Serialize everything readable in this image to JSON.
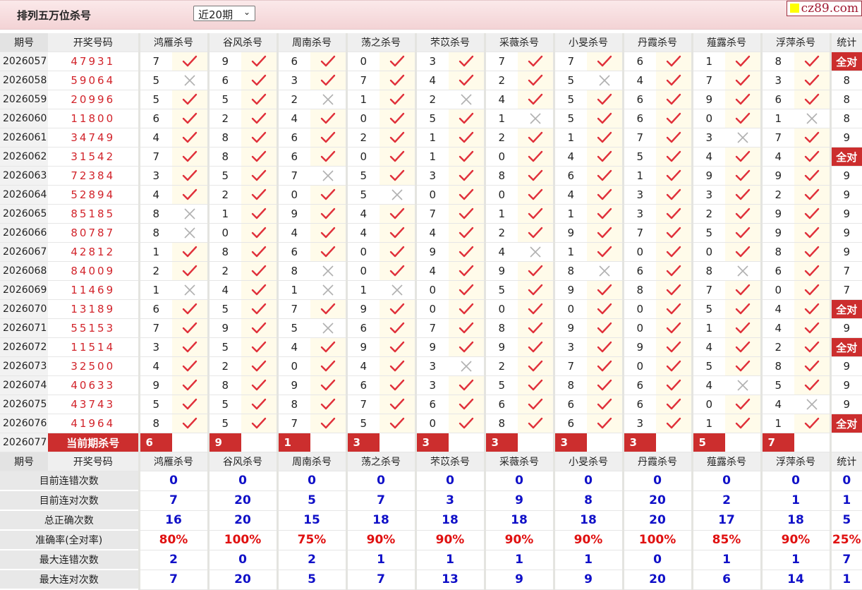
{
  "header": {
    "title": "排列五万位杀号",
    "period_select": "近20期",
    "brand": "cz89.com"
  },
  "columns": {
    "period": "期号",
    "draw": "开奖号码",
    "stat": "统计",
    "experts": [
      "鸿雁杀号",
      "谷风杀号",
      "周南杀号",
      "荡之杀号",
      "芣苡杀号",
      "采薇杀号",
      "小旻杀号",
      "丹霞杀号",
      "薤露杀号",
      "浮萍杀号"
    ]
  },
  "rows": [
    {
      "period": "2026057",
      "draw": "47931",
      "kills": [
        7,
        9,
        6,
        0,
        3,
        7,
        7,
        6,
        1,
        8
      ],
      "ok": [
        1,
        1,
        1,
        1,
        1,
        1,
        1,
        1,
        1,
        1
      ],
      "stat": "全对"
    },
    {
      "period": "2026058",
      "draw": "59064",
      "kills": [
        5,
        6,
        3,
        7,
        4,
        2,
        5,
        4,
        7,
        3
      ],
      "ok": [
        0,
        1,
        1,
        1,
        1,
        1,
        0,
        1,
        1,
        1
      ],
      "stat": "8"
    },
    {
      "period": "2026059",
      "draw": "20996",
      "kills": [
        5,
        5,
        2,
        1,
        2,
        4,
        5,
        6,
        9,
        6
      ],
      "ok": [
        1,
        1,
        0,
        1,
        0,
        1,
        1,
        1,
        1,
        1
      ],
      "stat": "8"
    },
    {
      "period": "2026060",
      "draw": "11800",
      "kills": [
        6,
        2,
        4,
        0,
        5,
        1,
        5,
        6,
        0,
        1
      ],
      "ok": [
        1,
        1,
        1,
        1,
        1,
        0,
        1,
        1,
        1,
        0
      ],
      "stat": "8"
    },
    {
      "period": "2026061",
      "draw": "34749",
      "kills": [
        4,
        8,
        6,
        2,
        1,
        2,
        1,
        7,
        3,
        7
      ],
      "ok": [
        1,
        1,
        1,
        1,
        1,
        1,
        1,
        1,
        0,
        1
      ],
      "stat": "9"
    },
    {
      "period": "2026062",
      "draw": "31542",
      "kills": [
        7,
        8,
        6,
        0,
        1,
        0,
        4,
        5,
        4,
        4
      ],
      "ok": [
        1,
        1,
        1,
        1,
        1,
        1,
        1,
        1,
        1,
        1
      ],
      "stat": "全对"
    },
    {
      "period": "2026063",
      "draw": "72384",
      "kills": [
        3,
        5,
        7,
        5,
        3,
        8,
        6,
        1,
        9,
        9
      ],
      "ok": [
        1,
        1,
        0,
        1,
        1,
        1,
        1,
        1,
        1,
        1
      ],
      "stat": "9"
    },
    {
      "period": "2026064",
      "draw": "52894",
      "kills": [
        4,
        2,
        0,
        5,
        0,
        0,
        4,
        3,
        3,
        2
      ],
      "ok": [
        1,
        1,
        1,
        0,
        1,
        1,
        1,
        1,
        1,
        1
      ],
      "stat": "9"
    },
    {
      "period": "2026065",
      "draw": "85185",
      "kills": [
        8,
        1,
        9,
        4,
        7,
        1,
        1,
        3,
        2,
        9
      ],
      "ok": [
        0,
        1,
        1,
        1,
        1,
        1,
        1,
        1,
        1,
        1
      ],
      "stat": "9"
    },
    {
      "period": "2026066",
      "draw": "80787",
      "kills": [
        8,
        0,
        4,
        4,
        4,
        2,
        9,
        7,
        5,
        9
      ],
      "ok": [
        0,
        1,
        1,
        1,
        1,
        1,
        1,
        1,
        1,
        1
      ],
      "stat": "9"
    },
    {
      "period": "2026067",
      "draw": "42812",
      "kills": [
        1,
        8,
        6,
        0,
        9,
        4,
        1,
        0,
        0,
        8
      ],
      "ok": [
        1,
        1,
        1,
        1,
        1,
        0,
        1,
        1,
        1,
        1
      ],
      "stat": "9"
    },
    {
      "period": "2026068",
      "draw": "84009",
      "kills": [
        2,
        2,
        8,
        0,
        4,
        9,
        8,
        6,
        8,
        6
      ],
      "ok": [
        1,
        1,
        0,
        1,
        1,
        1,
        0,
        1,
        0,
        1
      ],
      "stat": "7"
    },
    {
      "period": "2026069",
      "draw": "11469",
      "kills": [
        1,
        4,
        1,
        1,
        0,
        5,
        9,
        8,
        7,
        0
      ],
      "ok": [
        0,
        1,
        0,
        0,
        1,
        1,
        1,
        1,
        1,
        1
      ],
      "stat": "7"
    },
    {
      "period": "2026070",
      "draw": "13189",
      "kills": [
        6,
        5,
        7,
        9,
        0,
        0,
        0,
        0,
        5,
        4
      ],
      "ok": [
        1,
        1,
        1,
        1,
        1,
        1,
        1,
        1,
        1,
        1
      ],
      "stat": "全对"
    },
    {
      "period": "2026071",
      "draw": "55153",
      "kills": [
        7,
        9,
        5,
        6,
        7,
        8,
        9,
        0,
        1,
        4
      ],
      "ok": [
        1,
        1,
        0,
        1,
        1,
        1,
        1,
        1,
        1,
        1
      ],
      "stat": "9"
    },
    {
      "period": "2026072",
      "draw": "11514",
      "kills": [
        3,
        5,
        4,
        9,
        9,
        9,
        3,
        9,
        4,
        2
      ],
      "ok": [
        1,
        1,
        1,
        1,
        1,
        1,
        1,
        1,
        1,
        1
      ],
      "stat": "全对"
    },
    {
      "period": "2026073",
      "draw": "32500",
      "kills": [
        4,
        2,
        0,
        4,
        3,
        2,
        7,
        0,
        5,
        8
      ],
      "ok": [
        1,
        1,
        1,
        1,
        0,
        1,
        1,
        1,
        1,
        1
      ],
      "stat": "9"
    },
    {
      "period": "2026074",
      "draw": "40633",
      "kills": [
        9,
        8,
        9,
        6,
        3,
        5,
        8,
        6,
        4,
        5
      ],
      "ok": [
        1,
        1,
        1,
        1,
        1,
        1,
        1,
        1,
        0,
        1
      ],
      "stat": "9"
    },
    {
      "period": "2026075",
      "draw": "43743",
      "kills": [
        5,
        5,
        8,
        7,
        6,
        6,
        6,
        6,
        0,
        4
      ],
      "ok": [
        1,
        1,
        1,
        1,
        1,
        1,
        1,
        1,
        1,
        0
      ],
      "stat": "9"
    },
    {
      "period": "2026076",
      "draw": "41964",
      "kills": [
        8,
        5,
        7,
        5,
        0,
        8,
        6,
        3,
        1,
        1
      ],
      "ok": [
        1,
        1,
        1,
        1,
        1,
        1,
        1,
        1,
        1,
        1
      ],
      "stat": "全对"
    }
  ],
  "current": {
    "period": "2026077",
    "label": "当前期杀号",
    "kills": [
      6,
      9,
      1,
      3,
      3,
      3,
      3,
      3,
      5,
      7
    ]
  },
  "stats": [
    {
      "label": "目前连错次数",
      "values": [
        "0",
        "0",
        "0",
        "0",
        "0",
        "0",
        "0",
        "0",
        "0",
        "0"
      ],
      "total": "0"
    },
    {
      "label": "目前连对次数",
      "values": [
        "7",
        "20",
        "5",
        "7",
        "3",
        "9",
        "8",
        "20",
        "2",
        "1"
      ],
      "total": "1"
    },
    {
      "label": "总正确次数",
      "values": [
        "16",
        "20",
        "15",
        "18",
        "18",
        "18",
        "18",
        "20",
        "17",
        "18"
      ],
      "total": "5"
    },
    {
      "label": "准确率(全对率)",
      "values": [
        "80%",
        "100%",
        "75%",
        "90%",
        "90%",
        "90%",
        "90%",
        "100%",
        "85%",
        "90%"
      ],
      "total": "25%"
    },
    {
      "label": "最大连错次数",
      "values": [
        "2",
        "0",
        "2",
        "1",
        "1",
        "1",
        "1",
        "0",
        "1",
        "1"
      ],
      "total": "7"
    },
    {
      "label": "最大连对次数",
      "values": [
        "7",
        "20",
        "5",
        "7",
        "13",
        "9",
        "9",
        "20",
        "6",
        "14"
      ],
      "total": "1"
    }
  ],
  "colors": {
    "accent": "#cc2e2e",
    "check": "#e0303a",
    "cross": "#b0b0b0",
    "stat_blue": "#1010c8",
    "pct_red": "#e01010",
    "ok_bg": "#fffbea"
  }
}
